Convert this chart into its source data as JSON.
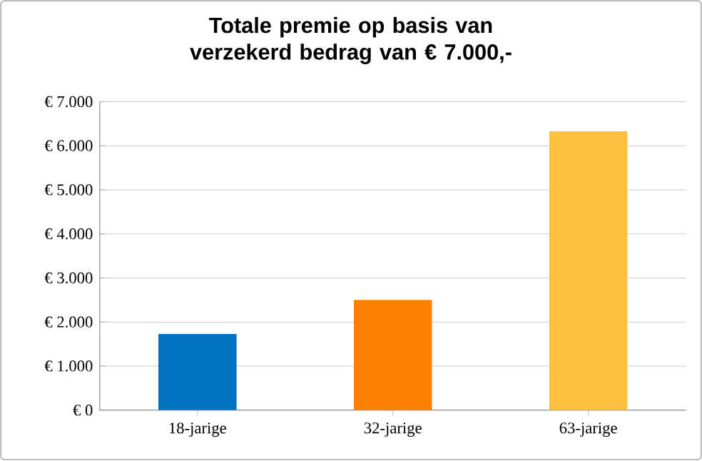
{
  "chart_data": {
    "type": "bar",
    "title": "Totale premie op basis van verzekerd bedrag van € 7.000,-",
    "categories": [
      "18-jarige",
      "32-jarige",
      "63-jarige"
    ],
    "values": [
      1730,
      2500,
      6330
    ],
    "colors": [
      "#0070c0",
      "#ff8000",
      "#ffc040"
    ],
    "ylim": [
      0,
      7000
    ],
    "yticks": [
      {
        "value": 0,
        "label": "€ 0"
      },
      {
        "value": 1000,
        "label": "€ 1.000"
      },
      {
        "value": 2000,
        "label": "€ 2.000"
      },
      {
        "value": 3000,
        "label": "€ 3.000"
      },
      {
        "value": 4000,
        "label": "€ 4.000"
      },
      {
        "value": 5000,
        "label": "€ 5.000"
      },
      {
        "value": 6000,
        "label": "€ 6.000"
      },
      {
        "value": 7000,
        "label": "€ 7.000"
      }
    ],
    "grid": "y"
  }
}
